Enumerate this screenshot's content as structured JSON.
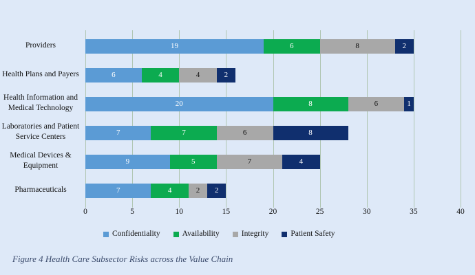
{
  "figure": {
    "caption": "Figure 4  Health Care Subsector Risks across the Value Chain"
  },
  "chart_data": {
    "type": "bar",
    "orientation": "horizontal",
    "stacked": true,
    "title": "",
    "xlabel": "",
    "ylabel": "",
    "xlim": [
      0,
      40
    ],
    "x_ticks": [
      0,
      5,
      10,
      15,
      20,
      25,
      30,
      35,
      40
    ],
    "grid": "vertical",
    "legend_position": "bottom",
    "categories": [
      "Providers",
      "Health Plans and Payers",
      "Health Information and\nMedical Technology",
      "Laboratories and Patient\nService Centers",
      "Medical Devices &\nEquipment",
      "Pharmaceuticals"
    ],
    "series": [
      {
        "name": "Confidentiality",
        "color": "#5b9bd5",
        "label_color": "#ffffff",
        "values": [
          19,
          6,
          20,
          7,
          9,
          7
        ]
      },
      {
        "name": "Availability",
        "color": "#0cab50",
        "label_color": "#ffffff",
        "values": [
          6,
          4,
          8,
          7,
          5,
          4
        ]
      },
      {
        "name": "Integrity",
        "color": "#a8a8a8",
        "label_color": "#111111",
        "values": [
          8,
          4,
          6,
          6,
          7,
          2
        ]
      },
      {
        "name": "Patient Safety",
        "color": "#102f6e",
        "label_color": "#ffffff",
        "values": [
          2,
          2,
          1,
          8,
          4,
          2
        ]
      }
    ],
    "totals": [
      35,
      16,
      35,
      28,
      25,
      15
    ]
  },
  "style": {
    "background": "#dee9f8",
    "gridline_color": "#b0c6b2",
    "caption_color": "#3d4d6e"
  }
}
